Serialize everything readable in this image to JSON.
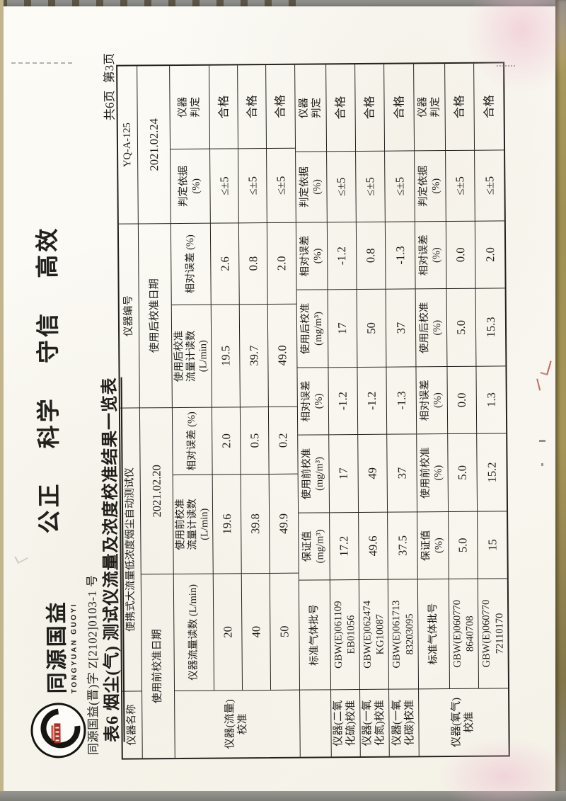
{
  "page": {
    "page_label": "共6页 第3页"
  },
  "letterhead": {
    "logo_cn": "同源国益",
    "logo_en": "TONGYUAN GUOYI",
    "motto": "公正 科学 守信 高效",
    "reg_no": "同源国益(晋)字 Z[2102]0103-1 号"
  },
  "title": "表6 烟尘(气) 测试仪流量及浓度校准结果一览表",
  "table": {
    "row1": {
      "c1": "仪器名称",
      "c2": "便携式大流量低浓度烟尘自动测试仪",
      "c3": "仪器编号",
      "c4": "YQ-A-125"
    },
    "row2": {
      "c1": "使用前校准日期",
      "c2": "2021.02.20",
      "c3": "使用后校准日期",
      "c4": "2021.02.24"
    },
    "flow": {
      "label": "仪器(流量)\n校准",
      "headers": [
        "仪器流量读数 (L/min)",
        "使用前校准\n流量计读数\n(L/min)",
        "相对误差 (%)",
        "使用后校准\n流量计读数\n(L/min)",
        "相对误差 (%)",
        "判定依据\n(%)",
        "仪器\n判定"
      ],
      "rows": [
        [
          "20",
          "19.6",
          "2.0",
          "19.5",
          "2.6",
          "≤±5",
          "合格"
        ],
        [
          "40",
          "39.8",
          "0.5",
          "39.7",
          "0.8",
          "≤±5",
          "合格"
        ],
        [
          "50",
          "49.9",
          "0.2",
          "49.0",
          "2.0",
          "≤±5",
          "合格"
        ]
      ]
    },
    "gas": {
      "headers": [
        "标准气体批号",
        "保证值\n(mg/m³)",
        "使用前校准\n(mg/m³)",
        "相对误差\n(%)",
        "使用后校准\n(mg/m³)",
        "相对误差\n(%)",
        "判定依据\n(%)",
        "仪器\n判定"
      ],
      "rows": [
        {
          "label": "仪器(二氧\n化硫)校准",
          "batch": "GBW(E)061109\nEB01056",
          "values": [
            "17.2",
            "17",
            "-1.2",
            "17",
            "-1.2",
            "≤±5",
            "合格"
          ]
        },
        {
          "label": "仪器(一氧\n化氮)校准",
          "batch": "GBW(E)062474\nKG10087",
          "values": [
            "49.6",
            "49",
            "-1.2",
            "50",
            "0.8",
            "≤±5",
            "合格"
          ]
        },
        {
          "label": "仪器(一氧\n化碳)校准",
          "batch": "GBW(E)061713\n83203095",
          "values": [
            "37.5",
            "37",
            "-1.3",
            "37",
            "-1.3",
            "≤±5",
            "合格"
          ]
        }
      ]
    },
    "oxygen": {
      "label": "仪器(氧气)\n校准",
      "headers": [
        "标准气体批号",
        "保证值\n(%)",
        "使用前校准\n(%)",
        "相对误差\n(%)",
        "使用后校准\n(%)",
        "相对误差\n(%)",
        "判定依据\n(%)",
        "仪器\n判定"
      ],
      "rows": [
        {
          "batch": "GBW(E)060770\n8640708",
          "values": [
            "5.0",
            "5.0",
            "0.0",
            "5.0",
            "0.0",
            "≤±5",
            "合格"
          ]
        },
        {
          "batch": "GBW(E)060770\n72110170",
          "values": [
            "15",
            "15.2",
            "1.3",
            "15.3",
            "2.0",
            "≤±5",
            "合格"
          ]
        }
      ]
    }
  }
}
